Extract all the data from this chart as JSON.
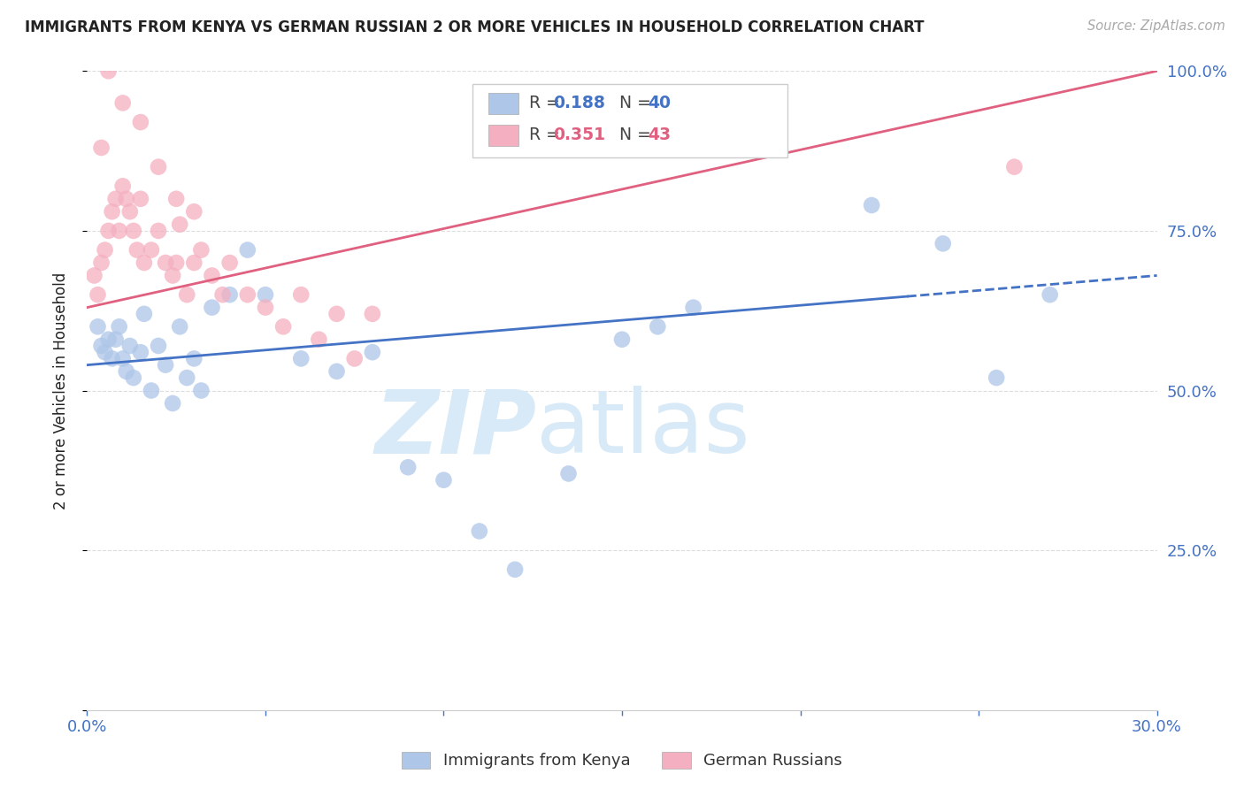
{
  "title": "IMMIGRANTS FROM KENYA VS GERMAN RUSSIAN 2 OR MORE VEHICLES IN HOUSEHOLD CORRELATION CHART",
  "source": "Source: ZipAtlas.com",
  "ylabel": "2 or more Vehicles in Household",
  "xlim": [
    0.0,
    30.0
  ],
  "ylim": [
    0.0,
    100.0
  ],
  "legend_R1": "0.188",
  "legend_N1": "40",
  "legend_R2": "0.351",
  "legend_N2": "43",
  "blue_color": "#aec6e8",
  "blue_line_color": "#4472c4",
  "pink_color": "#f4afc0",
  "pink_line_color": "#e06080",
  "axis_label_color": "#4472c4",
  "text_color": "#222222",
  "source_color": "#aaaaaa",
  "background_color": "#ffffff",
  "watermark_zip": "ZIP",
  "watermark_atlas": "atlas",
  "watermark_color": "#d8eaf7",
  "blue_scatter_x": [
    0.3,
    0.4,
    0.5,
    0.6,
    0.7,
    0.8,
    0.9,
    1.0,
    1.1,
    1.2,
    1.3,
    1.5,
    1.6,
    1.8,
    2.0,
    2.2,
    2.4,
    2.6,
    2.8,
    3.0,
    3.2,
    3.5,
    4.0,
    4.5,
    5.0,
    6.0,
    7.0,
    8.0,
    9.0,
    10.0,
    11.0,
    12.0,
    13.5,
    15.0,
    16.0,
    17.0,
    22.0,
    24.0,
    25.5,
    27.0
  ],
  "blue_scatter_y": [
    60,
    57,
    56,
    58,
    55,
    58,
    60,
    55,
    53,
    57,
    52,
    56,
    62,
    50,
    57,
    54,
    48,
    60,
    52,
    55,
    50,
    63,
    65,
    72,
    65,
    55,
    53,
    56,
    38,
    36,
    28,
    22,
    37,
    58,
    60,
    63,
    79,
    73,
    52,
    65
  ],
  "pink_scatter_x": [
    0.2,
    0.3,
    0.4,
    0.5,
    0.6,
    0.7,
    0.8,
    0.9,
    1.0,
    1.1,
    1.2,
    1.3,
    1.4,
    1.5,
    1.6,
    1.8,
    2.0,
    2.2,
    2.4,
    2.6,
    2.8,
    3.0,
    3.2,
    3.5,
    4.0,
    4.5,
    5.0,
    5.5,
    6.0,
    6.5,
    7.0,
    7.5,
    8.0,
    2.5,
    3.8,
    0.4,
    0.6,
    1.0,
    1.5,
    2.0,
    2.5,
    3.0,
    26.0
  ],
  "pink_scatter_y": [
    68,
    65,
    70,
    72,
    75,
    78,
    80,
    75,
    82,
    80,
    78,
    75,
    72,
    80,
    70,
    72,
    75,
    70,
    68,
    76,
    65,
    70,
    72,
    68,
    70,
    65,
    63,
    60,
    65,
    58,
    62,
    55,
    62,
    70,
    65,
    88,
    100,
    95,
    92,
    85,
    80,
    78,
    85
  ],
  "blue_line_x0": 0.0,
  "blue_line_y0": 54.0,
  "blue_line_x1": 30.0,
  "blue_line_y1": 68.0,
  "blue_dash_start": 23.0,
  "pink_line_x0": 0.0,
  "pink_line_y0": 63.0,
  "pink_line_x1": 30.0,
  "pink_line_y1": 100.0,
  "grid_color": "#dddddd",
  "spine_color": "#cccccc"
}
